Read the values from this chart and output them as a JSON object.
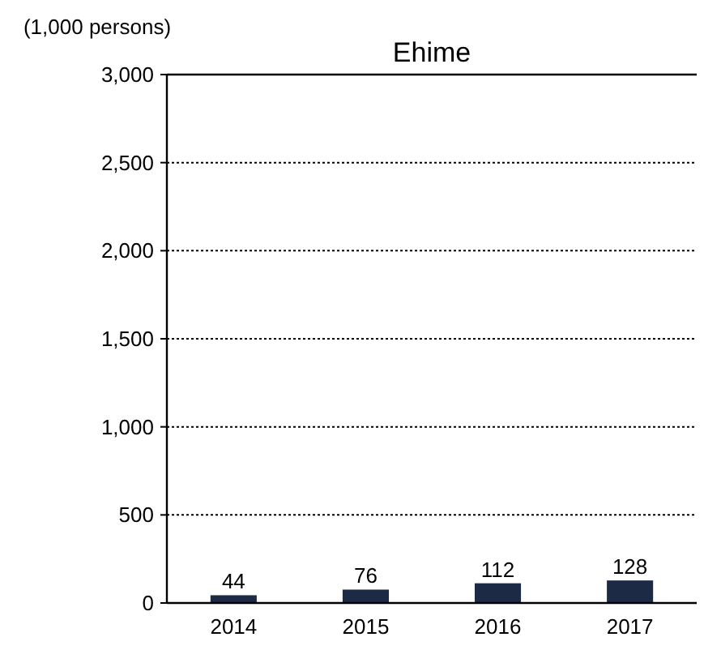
{
  "chart_data": {
    "type": "bar",
    "title": "Ehime",
    "ylabel": "(1,000 persons)",
    "categories": [
      "2014",
      "2015",
      "2016",
      "2017"
    ],
    "values": [
      44,
      76,
      112,
      128
    ],
    "color": "#1c2a45",
    "ylim": [
      0,
      3000
    ],
    "yticks": [
      0,
      500,
      {
        "value": 1000,
        "label": "1,000"
      },
      {
        "value": 1500,
        "label": "1,500"
      },
      {
        "value": 2000,
        "label": "2,000"
      },
      {
        "value": 2500,
        "label": "2,500"
      },
      {
        "value": 3000,
        "label": "3,000"
      }
    ],
    "grid": "y",
    "data_labels": true
  }
}
